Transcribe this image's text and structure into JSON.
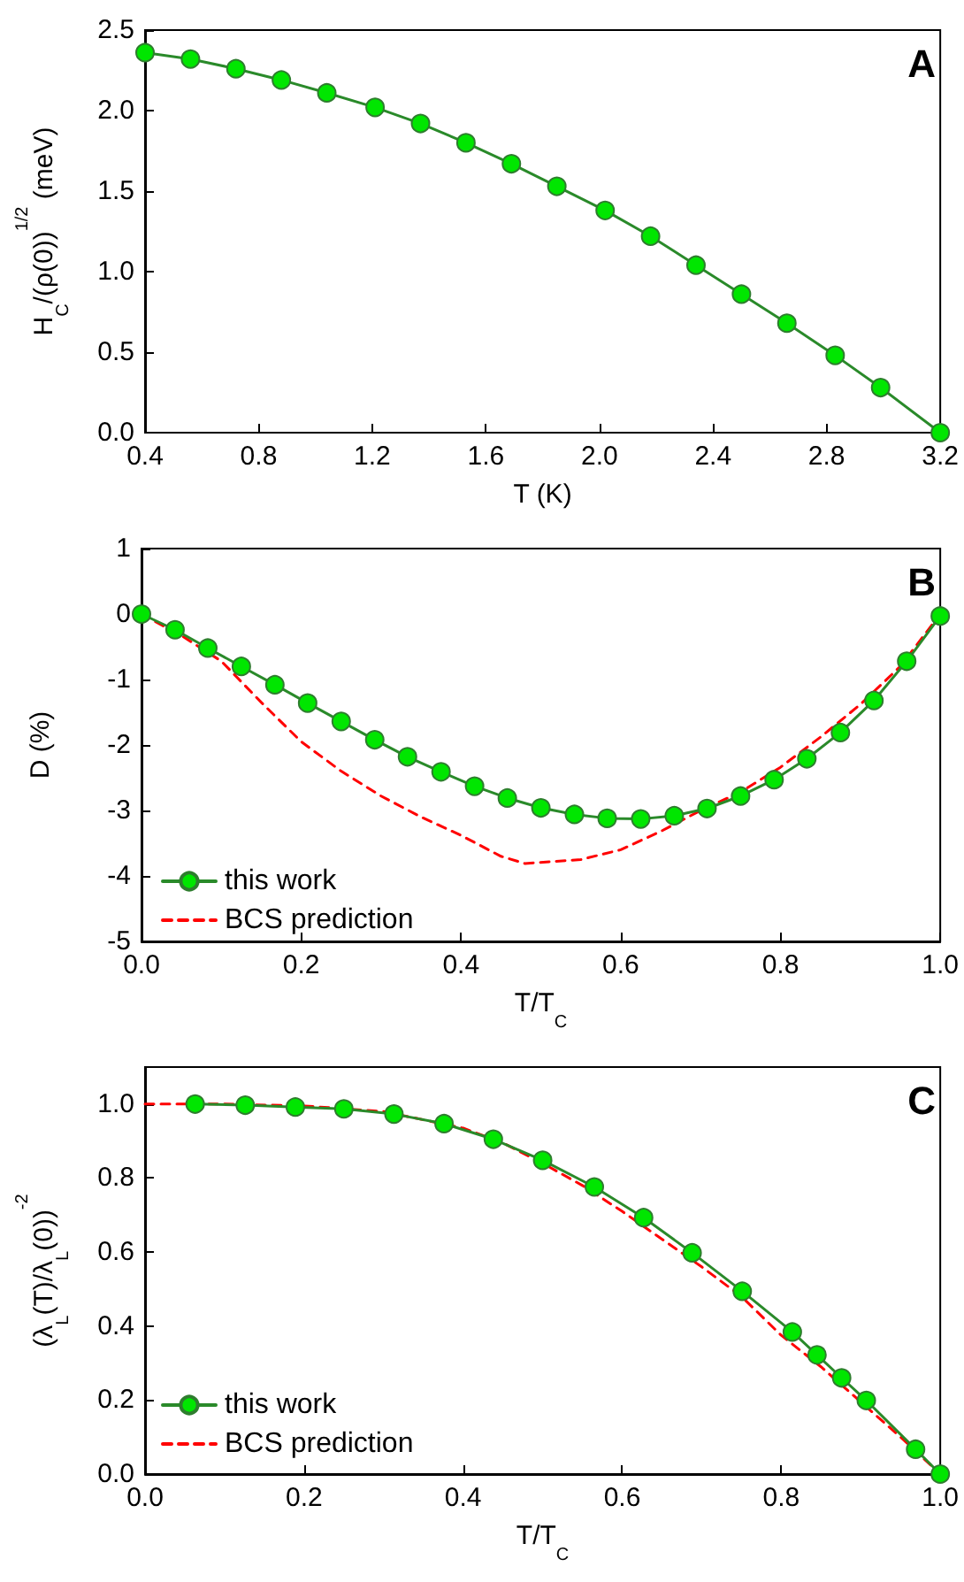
{
  "chart_data": [
    {
      "type": "line",
      "xlabel": "T (K)",
      "ylabel": "H$_{C}$/(ρ(0))$^{1/2}$ (meV)",
      "annotations": [
        "A"
      ],
      "grid": false,
      "legend": false,
      "xlim": [
        0.4,
        3.2
      ],
      "xticks": [
        0.4,
        0.8,
        1.2,
        1.6,
        {
          "value": 2,
          "label": "2.0"
        },
        2.4,
        2.8,
        3.2
      ],
      "ylim": [
        0,
        2.5
      ],
      "yticks": [
        {
          "value": 0,
          "label": "0.0"
        },
        0.5,
        {
          "value": 1,
          "label": "1.0"
        },
        1.5,
        {
          "value": 2,
          "label": "2.0"
        },
        2.5
      ],
      "series": [
        {
          "color": "#00e600",
          "marker": "circle",
          "line_style": "solid",
          "x": [
            0.4,
            0.56,
            0.72,
            0.88,
            1.04,
            1.21,
            1.37,
            1.53,
            1.69,
            1.85,
            2.02,
            2.18,
            2.34,
            2.5,
            2.66,
            2.83,
            2.99,
            3.2
          ],
          "values": [
            2.36,
            2.32,
            2.26,
            2.19,
            2.11,
            2.02,
            1.92,
            1.8,
            1.67,
            1.53,
            1.38,
            1.22,
            1.04,
            0.86,
            0.68,
            0.48,
            0.28,
            0
          ]
        }
      ]
    },
    {
      "type": "line",
      "xlabel": "T/T$_{C}$",
      "ylabel": "D (%)",
      "annotations": [
        "B"
      ],
      "grid": false,
      "legend": "bottom left",
      "xlim": [
        0,
        1
      ],
      "xticks": [
        {
          "value": 0,
          "label": "0.0"
        },
        0.2,
        0.4,
        0.6,
        0.8,
        {
          "value": 1,
          "label": "1.0"
        }
      ],
      "ylim": [
        -5,
        1
      ],
      "yticks": [
        -5,
        -4,
        -3,
        -2,
        -1,
        0,
        1
      ],
      "series": [
        {
          "name": "this work",
          "color": "#00e600",
          "marker": "circle",
          "line_style": "solid",
          "x": [
            0,
            0.042,
            0.083,
            0.125,
            0.167,
            0.208,
            0.25,
            0.292,
            0.333,
            0.375,
            0.417,
            0.458,
            0.5,
            0.542,
            0.583,
            0.625,
            0.667,
            0.708,
            0.75,
            0.792,
            0.833,
            0.875,
            0.917,
            0.958,
            1.0
          ],
          "values": [
            0,
            -0.24,
            -0.52,
            -0.8,
            -1.08,
            -1.36,
            -1.64,
            -1.92,
            -2.18,
            -2.41,
            -2.63,
            -2.81,
            -2.96,
            -3.06,
            -3.12,
            -3.13,
            -3.08,
            -2.97,
            -2.78,
            -2.53,
            -2.21,
            -1.81,
            -1.32,
            -0.72,
            -0.03
          ]
        },
        {
          "name": "BCS prediction",
          "color": "#ff0000",
          "marker": "none",
          "line_style": "dashed",
          "x": [
            0,
            0.05,
            0.1,
            0.15,
            0.2,
            0.25,
            0.3,
            0.35,
            0.4,
            0.45,
            0.48,
            0.55,
            0.6,
            0.65,
            0.7,
            0.75,
            0.8,
            0.85,
            0.9,
            0.95,
            1.0
          ],
          "values": [
            0,
            -0.33,
            -0.72,
            -1.35,
            -1.95,
            -2.4,
            -2.78,
            -3.1,
            -3.38,
            -3.7,
            -3.81,
            -3.75,
            -3.6,
            -3.32,
            -3.0,
            -2.72,
            -2.34,
            -1.88,
            -1.38,
            -0.8,
            0
          ]
        }
      ]
    },
    {
      "type": "line",
      "xlabel": "T/T$_{C}$",
      "ylabel": "(λ$_{L}$(T)/λ$_{L}$(0))$^{-2}$",
      "annotations": [
        "C"
      ],
      "grid": false,
      "legend": "bottom left",
      "xlim": [
        0,
        1
      ],
      "xticks": [
        {
          "value": 0,
          "label": "0.0"
        },
        0.2,
        0.4,
        0.6,
        0.8,
        {
          "value": 1,
          "label": "1.0"
        }
      ],
      "ylim": [
        0,
        1.1
      ],
      "yticks": [
        {
          "value": 0,
          "label": "0.0"
        },
        0.2,
        0.4,
        0.6,
        0.8,
        {
          "value": 1,
          "label": "1.0"
        }
      ],
      "series": [
        {
          "name": "this work",
          "color": "#00e600",
          "marker": "circle",
          "line_style": "solid",
          "x": [
            0.063,
            0.126,
            0.189,
            0.25,
            0.313,
            0.376,
            0.438,
            0.5,
            0.565,
            0.627,
            0.688,
            0.751,
            0.814,
            0.845,
            0.876,
            0.907,
            0.969,
            1.0
          ],
          "values": [
            1.0,
            0.997,
            0.992,
            0.987,
            0.973,
            0.947,
            0.905,
            0.848,
            0.776,
            0.693,
            0.598,
            0.494,
            0.384,
            0.322,
            0.26,
            0.199,
            0.067,
            0
          ]
        },
        {
          "name": "BCS prediction",
          "color": "#ff0000",
          "marker": "none",
          "line_style": "dashed",
          "x": [
            0,
            0.1,
            0.2,
            0.3,
            0.4,
            0.45,
            0.5,
            0.55,
            0.6,
            0.65,
            0.7,
            0.75,
            0.8,
            0.85,
            0.9,
            0.95,
            1.0
          ],
          "values": [
            1.0,
            1.0,
            0.995,
            0.98,
            0.935,
            0.895,
            0.84,
            0.78,
            0.71,
            0.635,
            0.56,
            0.48,
            0.375,
            0.29,
            0.195,
            0.1,
            0
          ]
        }
      ]
    }
  ]
}
